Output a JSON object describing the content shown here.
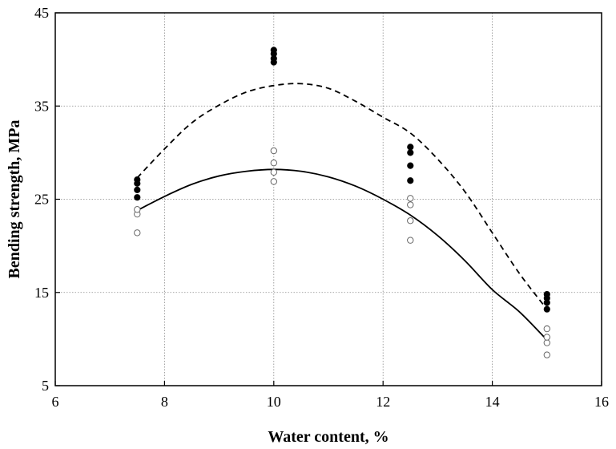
{
  "chart_data": {
    "type": "scatter",
    "title": "",
    "xlabel": "Water content, %",
    "ylabel": "Bending strength, MPa",
    "xlim": [
      6,
      16
    ],
    "ylim": [
      5,
      45
    ],
    "xticks": [
      6,
      8,
      10,
      12,
      14,
      16
    ],
    "yticks": [
      5,
      15,
      25,
      35,
      45
    ],
    "xtick_labels": [
      "6",
      "8",
      "10",
      "12",
      "14",
      "16"
    ],
    "ytick_labels": [
      "5",
      "15",
      "25",
      "35",
      "45"
    ],
    "grid": true,
    "series": [
      {
        "name": "filled-markers",
        "marker": "filled-circle",
        "color": "#000000",
        "points": [
          [
            7.5,
            25.2
          ],
          [
            7.5,
            26.0
          ],
          [
            7.5,
            26.7
          ],
          [
            7.5,
            27.1
          ],
          [
            10,
            39.7
          ],
          [
            10,
            40.1
          ],
          [
            10,
            40.6
          ],
          [
            10,
            41.0
          ],
          [
            12.5,
            27.0
          ],
          [
            12.5,
            28.6
          ],
          [
            12.5,
            30.0
          ],
          [
            12.5,
            30.6
          ],
          [
            15,
            13.2
          ],
          [
            15,
            13.9
          ],
          [
            15,
            14.4
          ],
          [
            15,
            14.8
          ]
        ]
      },
      {
        "name": "open-markers",
        "marker": "open-circle",
        "color": "#555555",
        "points": [
          [
            7.5,
            21.4
          ],
          [
            7.5,
            23.4
          ],
          [
            7.5,
            23.9
          ],
          [
            10,
            26.9
          ],
          [
            10,
            27.9
          ],
          [
            10,
            28.9
          ],
          [
            10,
            30.2
          ],
          [
            12.5,
            20.6
          ],
          [
            12.5,
            22.7
          ],
          [
            12.5,
            24.4
          ],
          [
            12.5,
            25.1
          ],
          [
            15,
            8.3
          ],
          [
            15,
            9.6
          ],
          [
            15,
            10.2
          ],
          [
            15,
            11.1
          ]
        ]
      },
      {
        "name": "dashed-fit",
        "type": "line",
        "style": "dashed",
        "color": "#000000",
        "x": [
          7.5,
          8.0,
          8.5,
          9.0,
          9.5,
          10.0,
          10.5,
          11.0,
          11.5,
          12.0,
          12.5,
          13.0,
          13.5,
          14.0,
          14.5,
          15.0
        ],
        "y": [
          27.3,
          30.4,
          33.2,
          35.1,
          36.5,
          37.2,
          37.4,
          36.9,
          35.5,
          33.8,
          32.1,
          29.3,
          25.8,
          21.4,
          17.0,
          13.2
        ]
      },
      {
        "name": "solid-fit",
        "type": "line",
        "style": "solid",
        "color": "#000000",
        "x": [
          7.5,
          8.0,
          8.5,
          9.0,
          9.5,
          10.0,
          10.5,
          11.0,
          11.5,
          12.0,
          12.5,
          13.0,
          13.5,
          14.0,
          14.5,
          15.0
        ],
        "y": [
          23.8,
          25.3,
          26.6,
          27.5,
          28.0,
          28.2,
          28.0,
          27.4,
          26.4,
          25.0,
          23.3,
          21.1,
          18.4,
          15.3,
          12.9,
          9.9
        ]
      }
    ]
  }
}
